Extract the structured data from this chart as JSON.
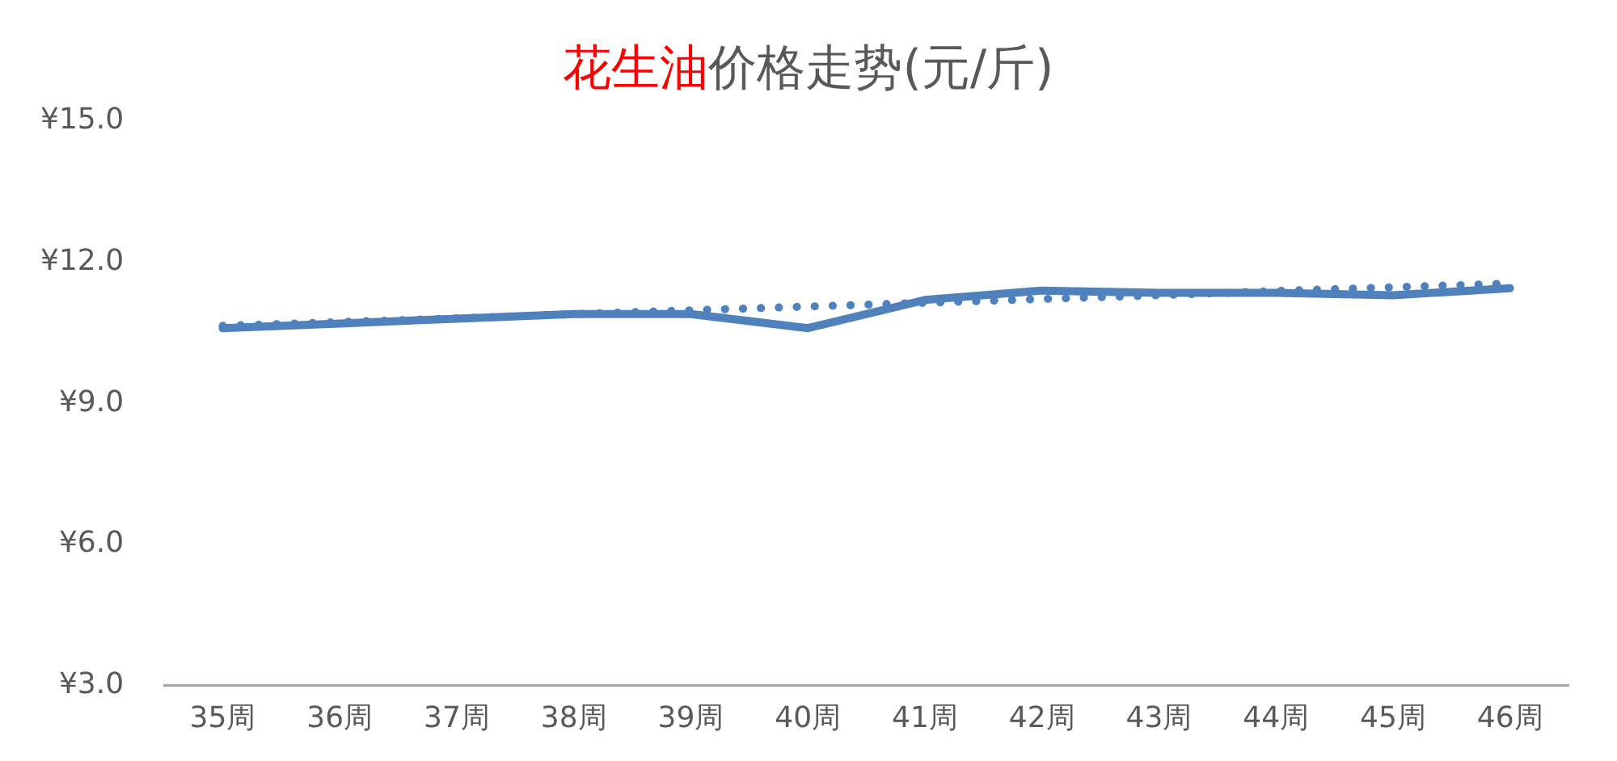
{
  "chart_data": {
    "type": "line",
    "title": "花生油价格走势(元/斤)",
    "categories": [
      "35周",
      "36周",
      "37周",
      "38周",
      "39周",
      "40周",
      "41周",
      "42周",
      "43周",
      "44周",
      "45周",
      "46周"
    ],
    "series": [
      {
        "color": "#4f81bd",
        "line_style": "solid",
        "values": [
          10.6,
          10.7,
          10.8,
          10.9,
          10.9,
          10.6,
          11.2,
          11.4,
          11.35,
          11.35,
          11.3,
          11.45
        ]
      },
      {
        "color": "#4f81bd",
        "line_style": "dotted",
        "values": [
          10.65,
          10.73,
          10.81,
          10.9,
          10.98,
          11.06,
          11.14,
          11.22,
          11.3,
          11.39,
          11.47,
          11.55
        ]
      }
    ],
    "ylim": [
      3,
      15
    ],
    "yticks": [
      {
        "value": 3,
        "label": "¥3.0"
      },
      {
        "value": 6,
        "label": "¥6.0"
      },
      {
        "value": 9,
        "label": "¥9.0"
      },
      {
        "value": 12,
        "label": "¥12.0"
      },
      {
        "value": 15,
        "label": "¥15.0"
      }
    ],
    "grid": false,
    "legend": false,
    "marker": "none"
  }
}
